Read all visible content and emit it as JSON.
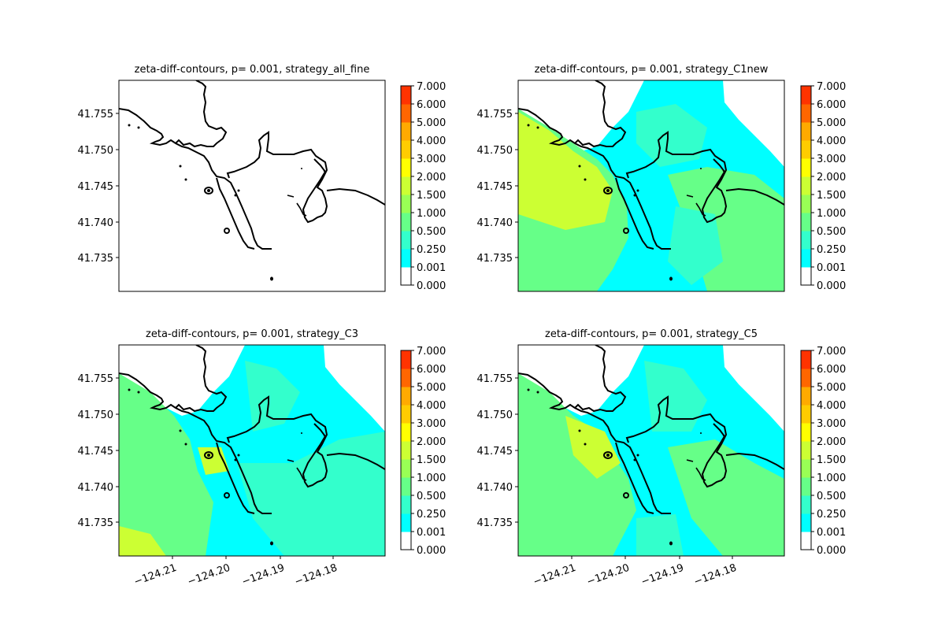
{
  "chart_data": [
    {
      "type": "heatmap",
      "title": "zeta-diff-contours, p= 0.001, strategy_all_fine",
      "y_ticks": [
        "41.755",
        "41.750",
        "41.745",
        "41.740",
        "41.735"
      ],
      "x_ticks": [],
      "field": "none",
      "colorbar_ticks": [
        "7.000",
        "6.000",
        "5.000",
        "4.000",
        "3.000",
        "2.000",
        "1.500",
        "1.000",
        "0.500",
        "0.250",
        "0.001",
        "0.000"
      ]
    },
    {
      "type": "heatmap",
      "title": "zeta-diff-contours, p= 0.001, strategy_C1new",
      "y_ticks": [
        "41.755",
        "41.750",
        "41.745",
        "41.740",
        "41.735"
      ],
      "x_ticks": [],
      "field": "C1new",
      "colorbar_ticks": [
        "7.000",
        "6.000",
        "5.000",
        "4.000",
        "3.000",
        "2.000",
        "1.500",
        "1.000",
        "0.500",
        "0.250",
        "0.001",
        "0.000"
      ]
    },
    {
      "type": "heatmap",
      "title": "zeta-diff-contours, p= 0.001, strategy_C3",
      "y_ticks": [
        "41.755",
        "41.750",
        "41.745",
        "41.740",
        "41.735"
      ],
      "x_ticks": [
        "−124.21",
        "−124.20",
        "−124.19",
        "−124.18"
      ],
      "field": "C3",
      "colorbar_ticks": [
        "7.000",
        "6.000",
        "5.000",
        "4.000",
        "3.000",
        "2.000",
        "1.500",
        "1.000",
        "0.500",
        "0.250",
        "0.001",
        "0.000"
      ]
    },
    {
      "type": "heatmap",
      "title": "zeta-diff-contours, p= 0.001, strategy_C5",
      "y_ticks": [
        "41.755",
        "41.750",
        "41.745",
        "41.740",
        "41.735"
      ],
      "x_ticks": [
        "−124.21",
        "−124.20",
        "−124.19",
        "−124.18"
      ],
      "field": "C5",
      "colorbar_ticks": [
        "7.000",
        "6.000",
        "5.000",
        "4.000",
        "3.000",
        "2.000",
        "1.500",
        "1.000",
        "0.500",
        "0.250",
        "0.001",
        "0.000"
      ]
    }
  ],
  "colorbar_colors": [
    "#ffffff",
    "#00ffff",
    "#33ffcc",
    "#66ff88",
    "#99ff55",
    "#ccff33",
    "#ffff00",
    "#ffcc00",
    "#ffaa00",
    "#ff6600",
    "#ff3300",
    "#ff0000"
  ],
  "colors": {
    "water_low": "#00ffff",
    "water_mid": "#33ffcc",
    "water_high": "#66ff88",
    "water_peak": "#ccff33",
    "coast": "#000000"
  }
}
